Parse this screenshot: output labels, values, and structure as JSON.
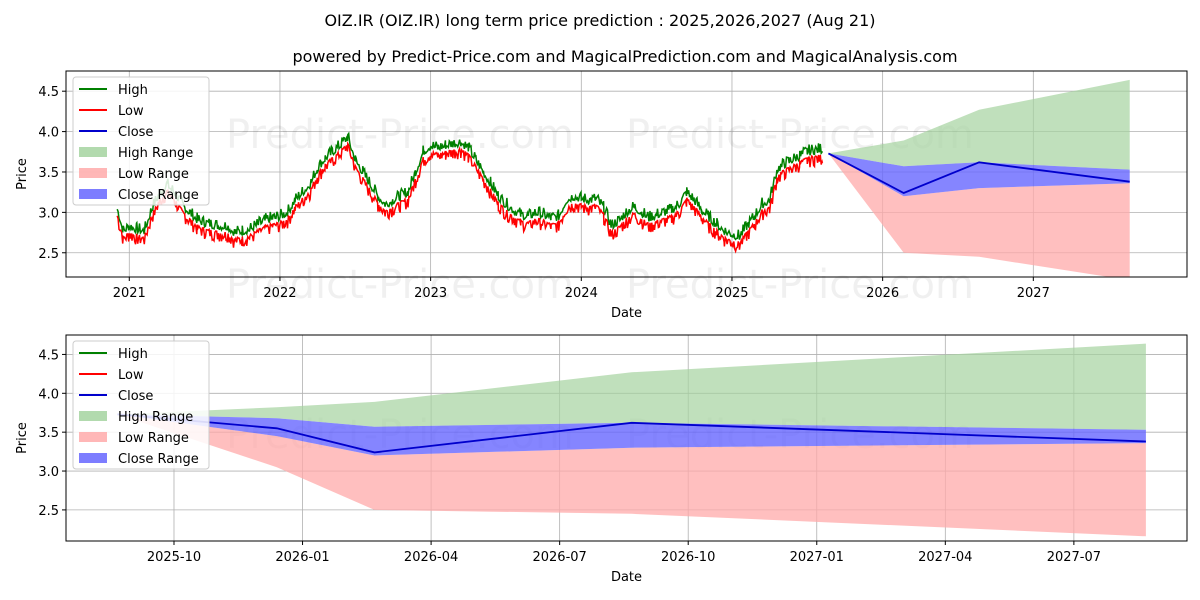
{
  "title": "OIZ.IR (OIZ.IR) long term price prediction : 2025,2026,2027 (Aug 21)",
  "subtitle": "powered by Predict-Price.com and MagicalPrediction.com and MagicalAnalysis.com",
  "watermark": "Predict-Price.com",
  "colors": {
    "high": "#008000",
    "low": "#ff0000",
    "close": "#0000cc",
    "high_range": "#a5d3a0",
    "low_range": "#ffaaaa",
    "close_range": "#6666ff",
    "grid": "#b0b0b0"
  },
  "chart_data": [
    {
      "type": "line",
      "panel": "top",
      "xlabel": "Date",
      "ylabel": "Price",
      "xlim": [
        2020.58,
        2028.02
      ],
      "ylim": [
        2.2,
        4.75
      ],
      "grid": true,
      "legend": "top-left",
      "xticks": [
        2021,
        2022,
        2023,
        2024,
        2025,
        2026,
        2027
      ],
      "xtick_labels": [
        "2021",
        "2022",
        "2023",
        "2024",
        "2025",
        "2026",
        "2027"
      ],
      "yticks": [
        2.5,
        3.0,
        3.5,
        4.0,
        4.5
      ],
      "ytick_labels": [
        "2.5",
        "3.0",
        "3.5",
        "4.0",
        "4.5"
      ],
      "history_close": [
        [
          2020.92,
          3.0
        ],
        [
          2020.96,
          2.72
        ],
        [
          2021.0,
          2.78
        ],
        [
          2021.05,
          2.74
        ],
        [
          2021.1,
          2.72
        ],
        [
          2021.15,
          3.0
        ],
        [
          2021.2,
          3.18
        ],
        [
          2021.25,
          3.3
        ],
        [
          2021.3,
          3.2
        ],
        [
          2021.35,
          3.05
        ],
        [
          2021.4,
          2.95
        ],
        [
          2021.45,
          2.86
        ],
        [
          2021.5,
          2.82
        ],
        [
          2021.55,
          2.8
        ],
        [
          2021.6,
          2.78
        ],
        [
          2021.65,
          2.78
        ],
        [
          2021.7,
          2.7
        ],
        [
          2021.75,
          2.72
        ],
        [
          2021.8,
          2.74
        ],
        [
          2021.85,
          2.8
        ],
        [
          2021.9,
          2.85
        ],
        [
          2021.95,
          2.88
        ],
        [
          2022.0,
          2.9
        ],
        [
          2022.05,
          2.95
        ],
        [
          2022.1,
          3.1
        ],
        [
          2022.15,
          3.2
        ],
        [
          2022.2,
          3.3
        ],
        [
          2022.25,
          3.5
        ],
        [
          2022.3,
          3.62
        ],
        [
          2022.35,
          3.7
        ],
        [
          2022.4,
          3.78
        ],
        [
          2022.45,
          3.88
        ],
        [
          2022.5,
          3.6
        ],
        [
          2022.55,
          3.45
        ],
        [
          2022.6,
          3.3
        ],
        [
          2022.65,
          3.15
        ],
        [
          2022.7,
          3.05
        ],
        [
          2022.75,
          3.1
        ],
        [
          2022.8,
          3.15
        ],
        [
          2022.85,
          3.2
        ],
        [
          2022.9,
          3.45
        ],
        [
          2022.95,
          3.7
        ],
        [
          2023.0,
          3.78
        ],
        [
          2023.05,
          3.75
        ],
        [
          2023.1,
          3.78
        ],
        [
          2023.15,
          3.8
        ],
        [
          2023.2,
          3.82
        ],
        [
          2023.25,
          3.75
        ],
        [
          2023.3,
          3.6
        ],
        [
          2023.35,
          3.45
        ],
        [
          2023.4,
          3.3
        ],
        [
          2023.45,
          3.15
        ],
        [
          2023.5,
          3.05
        ],
        [
          2023.55,
          2.98
        ],
        [
          2023.6,
          2.92
        ],
        [
          2023.65,
          2.9
        ],
        [
          2023.7,
          2.95
        ],
        [
          2023.75,
          2.92
        ],
        [
          2023.8,
          2.88
        ],
        [
          2023.85,
          2.9
        ],
        [
          2023.9,
          3.1
        ],
        [
          2023.95,
          3.15
        ],
        [
          2024.0,
          3.12
        ],
        [
          2024.05,
          3.1
        ],
        [
          2024.1,
          3.12
        ],
        [
          2024.15,
          3.0
        ],
        [
          2024.2,
          2.78
        ],
        [
          2024.25,
          2.85
        ],
        [
          2024.3,
          2.95
        ],
        [
          2024.35,
          3.02
        ],
        [
          2024.4,
          2.95
        ],
        [
          2024.45,
          2.88
        ],
        [
          2024.5,
          2.92
        ],
        [
          2024.55,
          2.95
        ],
        [
          2024.6,
          2.98
        ],
        [
          2024.65,
          3.05
        ],
        [
          2024.7,
          3.2
        ],
        [
          2024.75,
          3.1
        ],
        [
          2024.8,
          2.98
        ],
        [
          2024.85,
          2.88
        ],
        [
          2024.9,
          2.8
        ],
        [
          2024.95,
          2.72
        ],
        [
          2025.0,
          2.68
        ],
        [
          2025.05,
          2.65
        ],
        [
          2025.1,
          2.78
        ],
        [
          2025.15,
          2.9
        ],
        [
          2025.2,
          3.05
        ],
        [
          2025.25,
          3.1
        ],
        [
          2025.3,
          3.48
        ],
        [
          2025.35,
          3.55
        ],
        [
          2025.4,
          3.6
        ],
        [
          2025.45,
          3.65
        ],
        [
          2025.5,
          3.7
        ],
        [
          2025.55,
          3.72
        ],
        [
          2025.6,
          3.73
        ]
      ],
      "forecast_x": [
        2025.64,
        2026.14,
        2026.64,
        2027.64
      ],
      "forecast_close": [
        3.73,
        3.24,
        3.62,
        3.38
      ],
      "high_range_upper": [
        3.73,
        3.89,
        4.27,
        4.64
      ],
      "low_range_lower": [
        3.73,
        2.5,
        2.45,
        2.16
      ],
      "close_range_upper": [
        3.73,
        3.57,
        3.62,
        3.53
      ],
      "close_range_lower": [
        3.73,
        3.2,
        3.3,
        3.36
      ]
    },
    {
      "type": "line",
      "panel": "bottom",
      "xlabel": "Date",
      "ylabel": "Price",
      "xlim": [
        2025.54,
        2027.72
      ],
      "ylim": [
        2.1,
        4.75
      ],
      "grid": true,
      "legend": "top-left",
      "xticks": [
        2025.75,
        2026.0,
        2026.25,
        2026.5,
        2026.75,
        2027.0,
        2027.25,
        2027.5
      ],
      "xtick_labels": [
        "2025-10",
        "2026-01",
        "2026-04",
        "2026-07",
        "2026-10",
        "2027-01",
        "2027-04",
        "2027-07"
      ],
      "yticks": [
        2.5,
        3.0,
        3.5,
        4.0,
        4.5
      ],
      "ytick_labels": [
        "2.5",
        "3.0",
        "3.5",
        "4.0",
        "4.5"
      ],
      "forecast_x": [
        2025.64,
        2025.95,
        2026.14,
        2026.64,
        2027.64
      ],
      "forecast_close": [
        3.73,
        3.55,
        3.24,
        3.62,
        3.38
      ],
      "high_range_upper": [
        3.73,
        3.82,
        3.89,
        4.27,
        4.64
      ],
      "low_range_lower": [
        3.73,
        3.05,
        2.5,
        2.45,
        2.16
      ],
      "close_range_upper": [
        3.73,
        3.68,
        3.57,
        3.62,
        3.53
      ],
      "close_range_lower": [
        3.73,
        3.45,
        3.2,
        3.3,
        3.36
      ]
    }
  ],
  "legend": {
    "items": [
      {
        "label": "High",
        "kind": "line",
        "color_key": "high"
      },
      {
        "label": "Low",
        "kind": "line",
        "color_key": "low"
      },
      {
        "label": "Close",
        "kind": "line",
        "color_key": "close"
      },
      {
        "label": "High Range",
        "kind": "patch",
        "color_key": "high_range"
      },
      {
        "label": "Low Range",
        "kind": "patch",
        "color_key": "low_range"
      },
      {
        "label": "Close Range",
        "kind": "patch",
        "color_key": "close_range"
      }
    ]
  }
}
